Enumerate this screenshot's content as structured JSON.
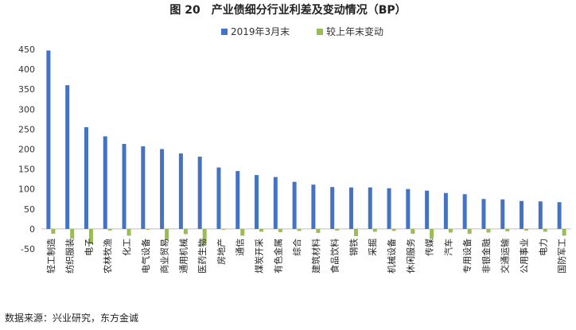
{
  "chart_data": {
    "type": "bar",
    "title": "图 20　产业债细分行业利差及变动情况（BP）",
    "source": "数据来源：兴业研究，东方金诚",
    "ylim": [
      -50,
      450
    ],
    "yticks": [
      -50,
      0,
      50,
      100,
      150,
      200,
      250,
      300,
      350,
      400,
      450
    ],
    "grid": false,
    "legend_position": "top",
    "categories": [
      "轻工制造",
      "纺织服装",
      "电子",
      "农林牧渔",
      "化工",
      "电气设备",
      "商业贸易",
      "通用机械",
      "医药生物",
      "房地产",
      "通信",
      "煤炭开采",
      "有色金属",
      "综合",
      "建筑材料",
      "食品饮料",
      "钢铁",
      "采掘",
      "机械设备",
      "休闲服务",
      "传媒",
      "汽车",
      "专用设备",
      "非银金融",
      "交通运输",
      "公用事业",
      "电力",
      "国防军工"
    ],
    "series": [
      {
        "name": "2019年3月末",
        "color": "#4472c4",
        "values": [
          447,
          360,
          255,
          232,
          213,
          207,
          200,
          189,
          181,
          154,
          145,
          135,
          130,
          118,
          111,
          105,
          104,
          104,
          102,
          100,
          96,
          90,
          87,
          75,
          74,
          70,
          69,
          67
        ]
      },
      {
        "name": "较上年末变动",
        "color": "#9bbb59",
        "values": [
          -12,
          -24,
          -37,
          -4,
          -17,
          0,
          -27,
          -13,
          -39,
          -2,
          -17,
          -7,
          -8,
          -5,
          -10,
          -4,
          -18,
          -7,
          -5,
          -12,
          -24,
          -9,
          -12,
          -9,
          -6,
          -4,
          -7,
          -17
        ]
      }
    ]
  }
}
